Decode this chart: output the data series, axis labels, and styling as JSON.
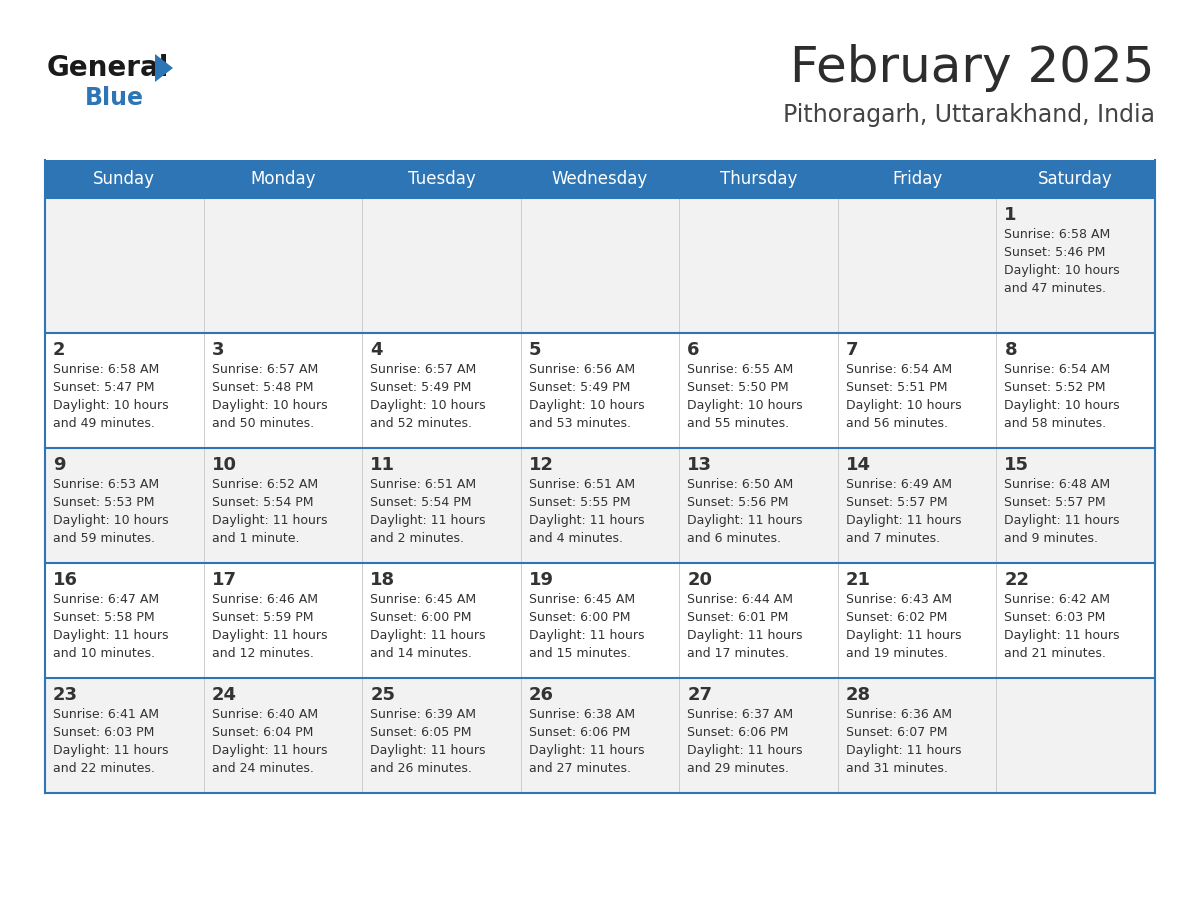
{
  "title": "February 2025",
  "subtitle": "Pithoragarh, Uttarakhand, India",
  "days_of_week": [
    "Sunday",
    "Monday",
    "Tuesday",
    "Wednesday",
    "Thursday",
    "Friday",
    "Saturday"
  ],
  "header_bg": "#2E75B6",
  "header_text": "#FFFFFF",
  "row_bg_odd": "#F2F2F2",
  "row_bg_even": "#FFFFFF",
  "cell_text": "#333333",
  "border_color": "#2E75B6",
  "title_color": "#2d2d2d",
  "subtitle_color": "#444444",
  "logo_general_color": "#1a1a1a",
  "logo_blue_color": "#2E75B6",
  "calendar_data": [
    [
      null,
      null,
      null,
      null,
      null,
      null,
      {
        "day": 1,
        "sunrise": "6:58 AM",
        "sunset": "5:46 PM",
        "daylight": "10 hours\nand 47 minutes."
      }
    ],
    [
      {
        "day": 2,
        "sunrise": "6:58 AM",
        "sunset": "5:47 PM",
        "daylight": "10 hours\nand 49 minutes."
      },
      {
        "day": 3,
        "sunrise": "6:57 AM",
        "sunset": "5:48 PM",
        "daylight": "10 hours\nand 50 minutes."
      },
      {
        "day": 4,
        "sunrise": "6:57 AM",
        "sunset": "5:49 PM",
        "daylight": "10 hours\nand 52 minutes."
      },
      {
        "day": 5,
        "sunrise": "6:56 AM",
        "sunset": "5:49 PM",
        "daylight": "10 hours\nand 53 minutes."
      },
      {
        "day": 6,
        "sunrise": "6:55 AM",
        "sunset": "5:50 PM",
        "daylight": "10 hours\nand 55 minutes."
      },
      {
        "day": 7,
        "sunrise": "6:54 AM",
        "sunset": "5:51 PM",
        "daylight": "10 hours\nand 56 minutes."
      },
      {
        "day": 8,
        "sunrise": "6:54 AM",
        "sunset": "5:52 PM",
        "daylight": "10 hours\nand 58 minutes."
      }
    ],
    [
      {
        "day": 9,
        "sunrise": "6:53 AM",
        "sunset": "5:53 PM",
        "daylight": "10 hours\nand 59 minutes."
      },
      {
        "day": 10,
        "sunrise": "6:52 AM",
        "sunset": "5:54 PM",
        "daylight": "11 hours\nand 1 minute."
      },
      {
        "day": 11,
        "sunrise": "6:51 AM",
        "sunset": "5:54 PM",
        "daylight": "11 hours\nand 2 minutes."
      },
      {
        "day": 12,
        "sunrise": "6:51 AM",
        "sunset": "5:55 PM",
        "daylight": "11 hours\nand 4 minutes."
      },
      {
        "day": 13,
        "sunrise": "6:50 AM",
        "sunset": "5:56 PM",
        "daylight": "11 hours\nand 6 minutes."
      },
      {
        "day": 14,
        "sunrise": "6:49 AM",
        "sunset": "5:57 PM",
        "daylight": "11 hours\nand 7 minutes."
      },
      {
        "day": 15,
        "sunrise": "6:48 AM",
        "sunset": "5:57 PM",
        "daylight": "11 hours\nand 9 minutes."
      }
    ],
    [
      {
        "day": 16,
        "sunrise": "6:47 AM",
        "sunset": "5:58 PM",
        "daylight": "11 hours\nand 10 minutes."
      },
      {
        "day": 17,
        "sunrise": "6:46 AM",
        "sunset": "5:59 PM",
        "daylight": "11 hours\nand 12 minutes."
      },
      {
        "day": 18,
        "sunrise": "6:45 AM",
        "sunset": "6:00 PM",
        "daylight": "11 hours\nand 14 minutes."
      },
      {
        "day": 19,
        "sunrise": "6:45 AM",
        "sunset": "6:00 PM",
        "daylight": "11 hours\nand 15 minutes."
      },
      {
        "day": 20,
        "sunrise": "6:44 AM",
        "sunset": "6:01 PM",
        "daylight": "11 hours\nand 17 minutes."
      },
      {
        "day": 21,
        "sunrise": "6:43 AM",
        "sunset": "6:02 PM",
        "daylight": "11 hours\nand 19 minutes."
      },
      {
        "day": 22,
        "sunrise": "6:42 AM",
        "sunset": "6:03 PM",
        "daylight": "11 hours\nand 21 minutes."
      }
    ],
    [
      {
        "day": 23,
        "sunrise": "6:41 AM",
        "sunset": "6:03 PM",
        "daylight": "11 hours\nand 22 minutes."
      },
      {
        "day": 24,
        "sunrise": "6:40 AM",
        "sunset": "6:04 PM",
        "daylight": "11 hours\nand 24 minutes."
      },
      {
        "day": 25,
        "sunrise": "6:39 AM",
        "sunset": "6:05 PM",
        "daylight": "11 hours\nand 26 minutes."
      },
      {
        "day": 26,
        "sunrise": "6:38 AM",
        "sunset": "6:06 PM",
        "daylight": "11 hours\nand 27 minutes."
      },
      {
        "day": 27,
        "sunrise": "6:37 AM",
        "sunset": "6:06 PM",
        "daylight": "11 hours\nand 29 minutes."
      },
      {
        "day": 28,
        "sunrise": "6:36 AM",
        "sunset": "6:07 PM",
        "daylight": "11 hours\nand 31 minutes."
      },
      null
    ]
  ]
}
